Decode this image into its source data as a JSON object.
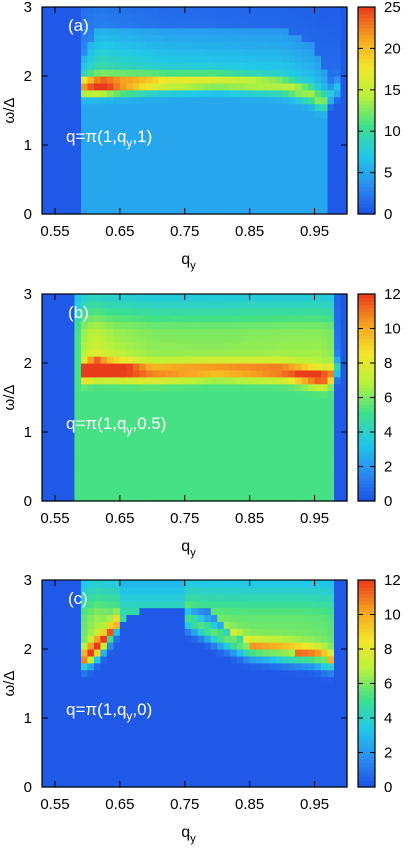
{
  "figure": {
    "colormap": [
      "#1e4fe6",
      "#2a8ff0",
      "#22c8e8",
      "#3fe08a",
      "#b8f23a",
      "#f4e52a",
      "#f6a020",
      "#ea3a1c"
    ],
    "background_color": "#2a5be8"
  },
  "chart_data": [
    {
      "type": "heatmap",
      "panel_label": "(a)",
      "annotation": {
        "prefix": "q=π(1,q",
        "sub": "y",
        "suffix": ",1)"
      },
      "xlabel": {
        "main": "q",
        "sub": "y"
      },
      "ylabel": "ω/Δ",
      "xlim": [
        0.53,
        1.0
      ],
      "ylim": [
        0,
        3
      ],
      "x_ticks": [
        "0.55",
        "0.65",
        "0.75",
        "0.85",
        "0.95"
      ],
      "x_tick_values": [
        0.55,
        0.65,
        0.75,
        0.85,
        0.95
      ],
      "y_ticks": [
        "0",
        "1",
        "2",
        "3"
      ],
      "y_tick_values": [
        0,
        1,
        2,
        3
      ],
      "colorbar": {
        "min": 0,
        "max": 25,
        "ticks": [
          "0",
          "5",
          "10",
          "15",
          "20",
          "25"
        ],
        "tick_values": [
          0,
          5,
          10,
          15,
          20,
          25
        ]
      },
      "features": [
        {
          "kind": "ridge",
          "x_start": 0.59,
          "x_end": 0.985,
          "y": [
            [
              0.59,
              1.85
            ],
            [
              0.63,
              1.87
            ],
            [
              0.7,
              1.9
            ],
            [
              0.8,
              1.92
            ],
            [
              0.9,
              1.86
            ],
            [
              0.95,
              1.72
            ],
            [
              0.96,
              1.6
            ],
            [
              0.975,
              1.72
            ],
            [
              0.985,
              1.82
            ]
          ],
          "peak": [
            [
              0.59,
              16
            ],
            [
              0.62,
              22
            ],
            [
              0.65,
              18
            ],
            [
              0.72,
              12
            ],
            [
              0.82,
              10
            ],
            [
              0.9,
              9
            ],
            [
              0.95,
              8
            ],
            [
              0.985,
              6
            ]
          ],
          "width": 0.09
        },
        {
          "kind": "continuum",
          "x_start": 0.59,
          "x_end": 0.97,
          "y_top": [
            [
              0.59,
              2.1
            ],
            [
              0.6,
              2.45
            ],
            [
              0.62,
              2.72
            ],
            [
              0.9,
              2.68
            ],
            [
              0.95,
              2.45
            ],
            [
              0.97,
              2.0
            ]
          ],
          "level": 4.5
        }
      ]
    },
    {
      "type": "heatmap",
      "panel_label": "(b)",
      "annotation": {
        "prefix": "q=π(1,q",
        "sub": "y",
        "suffix": ",0.5)"
      },
      "xlabel": {
        "main": "q",
        "sub": "y"
      },
      "ylabel": "ω/Δ",
      "xlim": [
        0.53,
        1.0
      ],
      "ylim": [
        0,
        3
      ],
      "x_ticks": [
        "0.55",
        "0.65",
        "0.75",
        "0.85",
        "0.95"
      ],
      "x_tick_values": [
        0.55,
        0.65,
        0.75,
        0.85,
        0.95
      ],
      "y_ticks": [
        "0",
        "1",
        "2",
        "3"
      ],
      "y_tick_values": [
        0,
        1,
        2,
        3
      ],
      "colorbar": {
        "min": 0,
        "max": 12,
        "ticks": [
          "0",
          "2",
          "4",
          "6",
          "8",
          "10",
          "12"
        ],
        "tick_values": [
          0,
          2,
          4,
          6,
          8,
          10,
          12
        ]
      },
      "features": [
        {
          "kind": "ridge",
          "x_start": 0.59,
          "x_end": 0.985,
          "y": [
            [
              0.59,
              1.85
            ],
            [
              0.61,
              1.92
            ],
            [
              0.7,
              1.86
            ],
            [
              0.8,
              1.9
            ],
            [
              0.9,
              1.88
            ],
            [
              0.95,
              1.8
            ],
            [
              0.97,
              1.78
            ],
            [
              0.985,
              1.92
            ]
          ],
          "peak": [
            [
              0.59,
              7
            ],
            [
              0.61,
              11.5
            ],
            [
              0.64,
              8
            ],
            [
              0.7,
              5.5
            ],
            [
              0.8,
              5
            ],
            [
              0.9,
              6
            ],
            [
              0.96,
              7
            ],
            [
              0.985,
              4
            ]
          ],
          "width": 0.09
        },
        {
          "kind": "continuum",
          "x_start": 0.585,
          "x_end": 0.975,
          "y_top": [
            [
              0.585,
              3.0
            ],
            [
              0.975,
              3.0
            ]
          ],
          "level": 5
        }
      ]
    },
    {
      "type": "heatmap",
      "panel_label": "(c)",
      "annotation": {
        "prefix": "q=π(1,q",
        "sub": "y",
        "suffix": ",0)"
      },
      "xlabel": {
        "main": "q",
        "sub": "y"
      },
      "ylabel": "ω/Δ",
      "xlim": [
        0.53,
        1.0
      ],
      "ylim": [
        0,
        3
      ],
      "x_ticks": [
        "0.55",
        "0.65",
        "0.75",
        "0.85",
        "0.95"
      ],
      "x_tick_values": [
        0.55,
        0.65,
        0.75,
        0.85,
        0.95
      ],
      "y_ticks": [
        "0",
        "1",
        "2",
        "3"
      ],
      "y_tick_values": [
        0,
        1,
        2,
        3
      ],
      "colorbar": {
        "min": 0,
        "max": 12,
        "ticks": [
          "0",
          "2",
          "4",
          "6",
          "8",
          "10",
          "12"
        ],
        "tick_values": [
          0,
          2,
          4,
          6,
          8,
          10,
          12
        ]
      },
      "features": [
        {
          "kind": "ridge",
          "x_start": 0.595,
          "x_end": 0.645,
          "y": [
            [
              0.595,
              1.85
            ],
            [
              0.61,
              1.95
            ],
            [
              0.625,
              2.1
            ],
            [
              0.645,
              2.35
            ]
          ],
          "peak": [
            [
              0.595,
              6
            ],
            [
              0.612,
              10.5
            ],
            [
              0.63,
              7
            ],
            [
              0.645,
              5
            ]
          ],
          "width": 0.1
        },
        {
          "kind": "ridge",
          "x_start": 0.75,
          "x_end": 0.98,
          "y": [
            [
              0.75,
              2.45
            ],
            [
              0.8,
              2.2
            ],
            [
              0.85,
              2.0
            ],
            [
              0.9,
              1.95
            ],
            [
              0.95,
              1.9
            ],
            [
              0.975,
              1.82
            ]
          ],
          "peak": [
            [
              0.75,
              4.5
            ],
            [
              0.85,
              5.5
            ],
            [
              0.92,
              6
            ],
            [
              0.97,
              5.5
            ],
            [
              0.98,
              4
            ]
          ],
          "width": 0.1
        },
        {
          "kind": "continuum",
          "x_start": 0.59,
          "x_end": 0.975,
          "y_top": [
            [
              0.59,
              3.0
            ],
            [
              0.975,
              3.0
            ]
          ],
          "y_bottom": [
            [
              0.59,
              1.8
            ],
            [
              0.65,
              2.4
            ],
            [
              0.7,
              2.62
            ],
            [
              0.78,
              2.6
            ],
            [
              0.85,
              2.05
            ],
            [
              0.95,
              1.9
            ],
            [
              0.975,
              1.85
            ]
          ],
          "level": 4.5
        }
      ]
    }
  ]
}
